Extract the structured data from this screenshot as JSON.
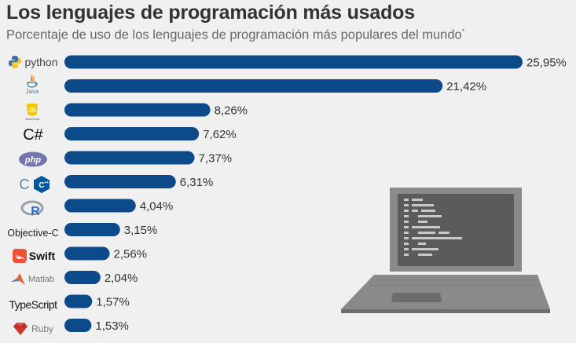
{
  "header": {
    "title": "Los lenguajes de programación más usados",
    "subtitle": "Porcentaje de uso de los lenguajes de programación más populares del mundo",
    "subtitle_mark": "*"
  },
  "chart_data": {
    "type": "bar",
    "orientation": "horizontal",
    "categories": [
      "python",
      "Java",
      "JavaScript",
      "C#",
      "php",
      "C/C++",
      "R",
      "Objective-C",
      "Swift",
      "Matlab",
      "TypeScript",
      "Ruby"
    ],
    "values": [
      25.95,
      21.42,
      8.26,
      7.62,
      7.37,
      6.31,
      4.04,
      3.15,
      2.56,
      2.04,
      1.57,
      1.53
    ],
    "value_labels": [
      "25,95%",
      "21,42%",
      "8,26%",
      "7,62%",
      "7,37%",
      "6,31%",
      "4,04%",
      "3,15%",
      "2,56%",
      "2,04%",
      "1,57%",
      "1,53%"
    ],
    "title": "Los lenguajes de programación más usados",
    "subtitle": "Porcentaje de uso de los lenguajes de programación más populares del mundo",
    "bar_color": "#0c4a8a",
    "grid": false,
    "legend": "none"
  },
  "logos": {
    "python": "python",
    "java": "Java",
    "js": "JS",
    "js_small": "JavaScript",
    "csharp": "C#",
    "php": "php",
    "c": "C",
    "cpp": "C++",
    "r": "R",
    "objc": "Objective-C",
    "swift": "Swift",
    "matlab": "Matlab",
    "typescript": "TypeScript",
    "ruby": "Ruby"
  },
  "colors": {
    "bar": "#0c4a8a",
    "laptop": "#8a8a8a",
    "laptop_screen": "#5a5a5a",
    "title": "#333333",
    "subtitle": "#666666"
  },
  "illustration": {
    "icon": "laptop-with-code-icon"
  }
}
